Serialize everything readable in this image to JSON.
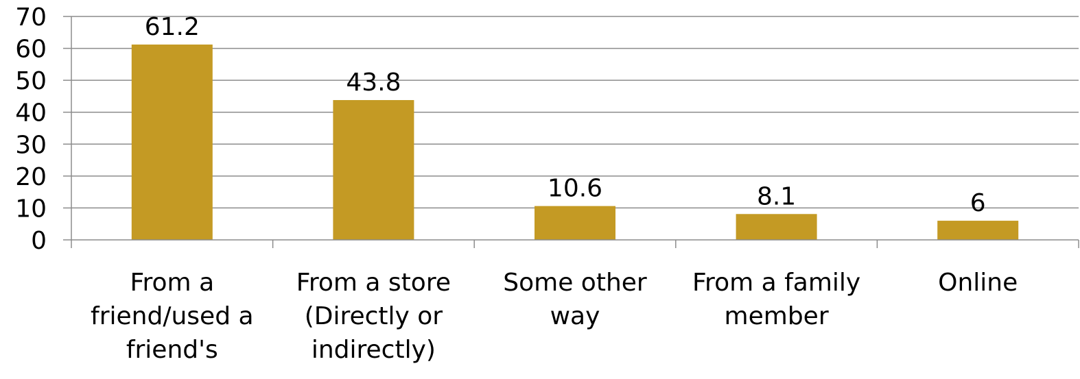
{
  "chart_data": {
    "type": "bar",
    "categories": [
      "From a friend/used a friend's",
      "From a store (Directly or indirectly)",
      "Some other way",
      "From a family member",
      "Online"
    ],
    "category_label_lines": [
      [
        "From a",
        "friend/used a",
        "friend's"
      ],
      [
        "From a store",
        "(Directly or",
        "indirectly)"
      ],
      [
        "Some other",
        "way"
      ],
      [
        "From a family",
        "member"
      ],
      [
        "Online"
      ]
    ],
    "values": [
      61.2,
      43.8,
      10.6,
      8.1,
      6
    ],
    "value_labels": [
      "61.2",
      "43.8",
      "10.6",
      "8.1",
      "6"
    ],
    "ylim": [
      0,
      70
    ],
    "yticks": [
      0,
      10,
      20,
      30,
      40,
      50,
      60,
      70
    ],
    "ytick_labels": [
      "0",
      "10",
      "20",
      "30",
      "40",
      "50",
      "60",
      "70"
    ],
    "grid": true,
    "legend": "none",
    "title": "",
    "xlabel": "",
    "ylabel": "",
    "bar_color": "#C49A24",
    "grid_color": "#8C8C8C"
  }
}
